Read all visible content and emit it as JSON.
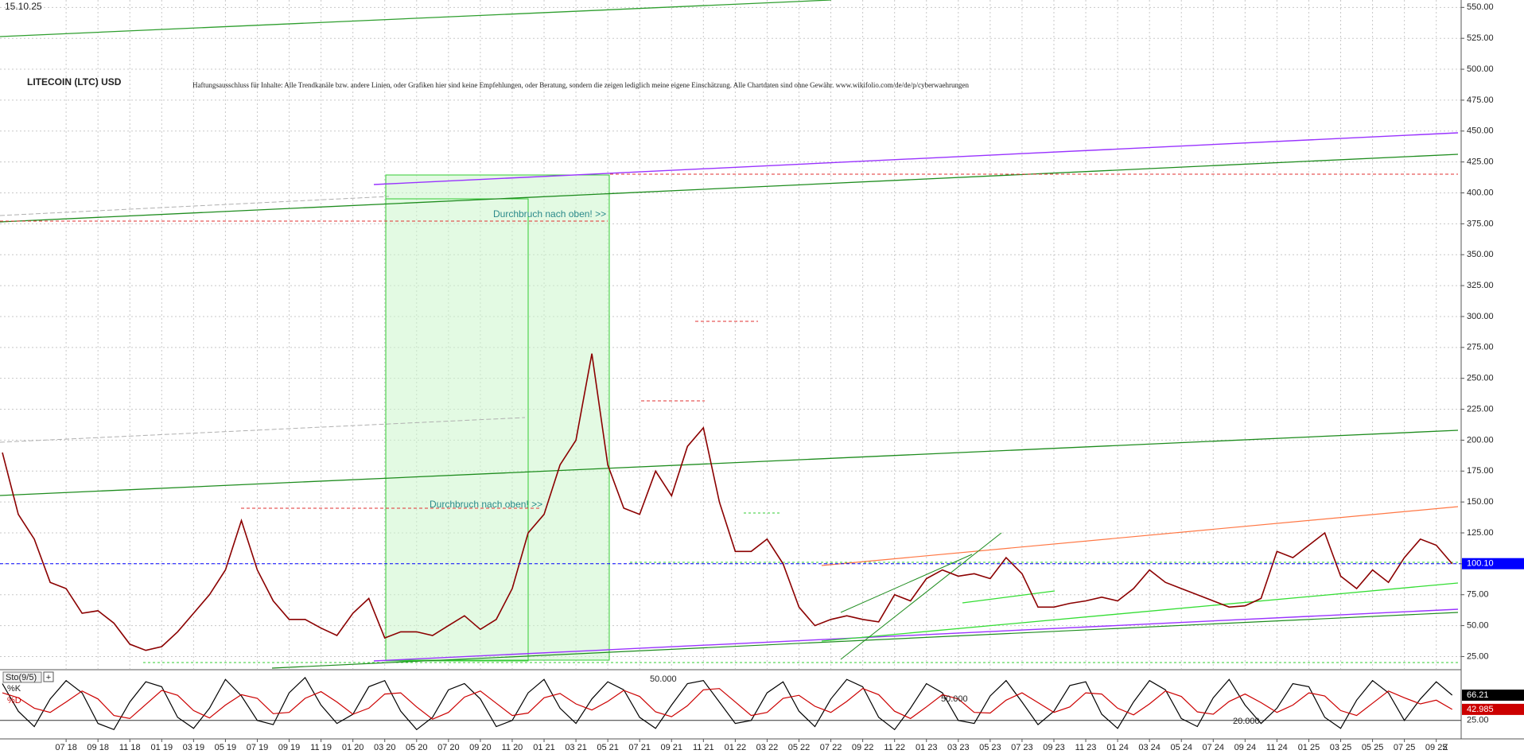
{
  "chart_data": {
    "type": "line",
    "date": "15.10.25",
    "title": "LITECOIN (LTC) USD",
    "disclaimer": "Haftungsausschluss für Inhalte: Alle Trendkanäle bzw. andere Linien, oder Grafiken hier sind keine Empfehlungen, oder Beratung, sondern die zeigen lediglich meine eigene Einschätzung. Alle Chartdaten sind ohne Gewähr. www.wikifolio.com/de/de/p/cyberwaehrungen",
    "annotations": [
      "Durchbruch nach oben! >>",
      "Durchbruch nach oben! >>"
    ],
    "categories": [
      null,
      null,
      null,
      null,
      "07 18",
      null,
      "09 18",
      null,
      "11 18",
      null,
      "01 19",
      null,
      "03 19",
      null,
      "05 19",
      null,
      "07 19",
      null,
      "09 19",
      null,
      "11 19",
      null,
      "01 20",
      null,
      "03 20",
      null,
      "05 20",
      null,
      "07 20",
      null,
      "09 20",
      null,
      "11 20",
      null,
      "01 21",
      null,
      "03 21",
      null,
      "05 21",
      null,
      "07 21",
      null,
      "09 21",
      null,
      "11 21",
      null,
      "01 22",
      null,
      "03 22",
      null,
      "05 22",
      null,
      "07 22",
      null,
      "09 22",
      null,
      "11 22",
      null,
      "01 23",
      null,
      "03 23",
      null,
      "05 23",
      null,
      "07 23",
      null,
      "09 23",
      null,
      "11 23",
      null,
      "01 24",
      null,
      "03 24",
      null,
      "05 24",
      null,
      "07 24",
      null,
      "09 24",
      null,
      "11 24",
      null,
      "01 25",
      null,
      "03 25",
      null,
      "05 25",
      null,
      "07 25",
      null,
      "09 25",
      null
    ],
    "axis_end_label": "Z",
    "color": "#8b0000",
    "values": [
      190,
      140,
      120,
      85,
      80,
      60,
      62,
      52,
      35,
      30,
      33,
      45,
      60,
      75,
      95,
      135,
      95,
      70,
      55,
      55,
      48,
      42,
      60,
      72,
      40,
      45,
      45,
      42,
      50,
      58,
      47,
      55,
      80,
      125,
      140,
      180,
      200,
      270,
      180,
      145,
      140,
      175,
      155,
      195,
      210,
      150,
      110,
      110,
      120,
      100,
      65,
      50,
      55,
      58,
      55,
      53,
      75,
      70,
      88,
      95,
      90,
      92,
      88,
      105,
      92,
      65,
      65,
      68,
      70,
      73,
      70,
      80,
      95,
      85,
      80,
      75,
      70,
      65,
      66,
      72,
      110,
      105,
      115,
      125,
      90,
      80,
      95,
      85,
      105,
      120,
      115,
      100
    ],
    "ylim": [
      15,
      556
    ],
    "yticks": [
      {
        "value": 25,
        "label": "25.00"
      },
      {
        "value": 50,
        "label": "50.00"
      },
      {
        "value": 75,
        "label": "75.00"
      },
      {
        "value": 100,
        "label": "100.00"
      },
      {
        "value": 125,
        "label": "125.00"
      },
      {
        "value": 150,
        "label": "150.00"
      },
      {
        "value": 175,
        "label": "175.00"
      },
      {
        "value": 200,
        "label": "200.00"
      },
      {
        "value": 225,
        "label": "225.00"
      },
      {
        "value": 250,
        "label": "250.00"
      },
      {
        "value": 275,
        "label": "275.00"
      },
      {
        "value": 300,
        "label": "300.00"
      },
      {
        "value": 325,
        "label": "325.00"
      },
      {
        "value": 350,
        "label": "350.00"
      },
      {
        "value": 375,
        "label": "375.00"
      },
      {
        "value": 400,
        "label": "400.00"
      },
      {
        "value": 425,
        "label": "425.00"
      },
      {
        "value": 450,
        "label": "450.00"
      },
      {
        "value": 475,
        "label": "475.00"
      },
      {
        "value": 500,
        "label": "500.00"
      },
      {
        "value": 525,
        "label": "525.00"
      },
      {
        "value": 550,
        "label": "550.00"
      }
    ],
    "grid": true,
    "last_price": {
      "value": 100.1,
      "label": "100.10",
      "color": "#0000ff"
    },
    "stochastic": {
      "title": "Sto(9/5)",
      "ylim": [
        0,
        100
      ],
      "yticks": [
        {
          "value": 25,
          "label": "25.00"
        }
      ],
      "annotations": [
        "50.000",
        "50.000",
        "20.000"
      ],
      "series": [
        {
          "name": "%K",
          "color": "#000000",
          "last_label": "66.21",
          "values": [
            85,
            40,
            15,
            60,
            90,
            70,
            20,
            10,
            55,
            88,
            80,
            30,
            12,
            45,
            92,
            65,
            25,
            18,
            70,
            95,
            50,
            20,
            35,
            80,
            90,
            40,
            10,
            30,
            75,
            85,
            60,
            15,
            25,
            70,
            92,
            45,
            20,
            60,
            88,
            75,
            30,
            12,
            50,
            85,
            90,
            55,
            20,
            25,
            70,
            88,
            40,
            15,
            60,
            92,
            80,
            30,
            10,
            45,
            85,
            70,
            25,
            20,
            65,
            90,
            55,
            18,
            40,
            82,
            88,
            35,
            12,
            55,
            90,
            75,
            28,
            15,
            62,
            92,
            50,
            20,
            45,
            85,
            80,
            30,
            12,
            58,
            90,
            70,
            25,
            60,
            88,
            66.21
          ]
        },
        {
          "name": "%D",
          "color": "#cc0000",
          "last_label": "42.985",
          "values": [
            70,
            62,
            45,
            38,
            55,
            73,
            60,
            33,
            28,
            51,
            74,
            66,
            41,
            29,
            50,
            67,
            61,
            36,
            38,
            61,
            72,
            55,
            35,
            45,
            68,
            70,
            47,
            27,
            38,
            63,
            73,
            53,
            33,
            37,
            62,
            69,
            52,
            42,
            56,
            74,
            64,
            39,
            31,
            49,
            75,
            77,
            55,
            33,
            38,
            61,
            66,
            48,
            38,
            56,
            77,
            67,
            40,
            28,
            47,
            67,
            60,
            38,
            37,
            58,
            70,
            54,
            38,
            47,
            70,
            68,
            45,
            34,
            52,
            73,
            64,
            39,
            35,
            56,
            68,
            54,
            38,
            50,
            70,
            65,
            41,
            33,
            53,
            73,
            62,
            52,
            58,
            42.985
          ]
        }
      ]
    }
  }
}
